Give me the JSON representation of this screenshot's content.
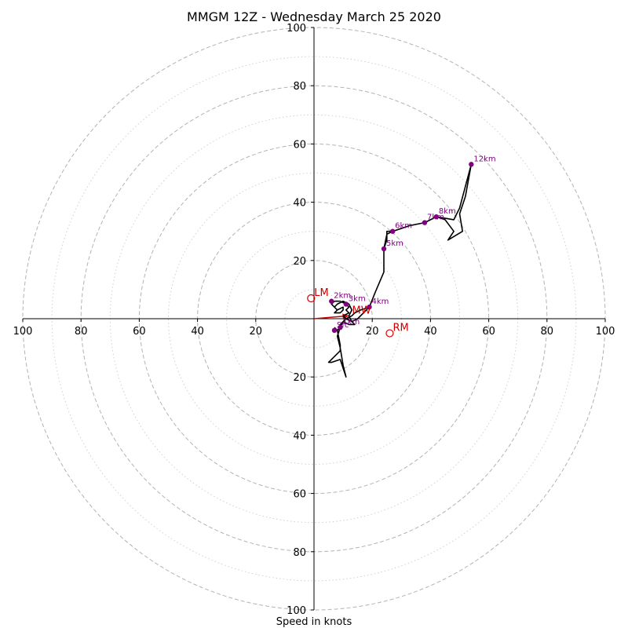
{
  "chart_data": {
    "type": "hodograph",
    "title": "MMGM 12Z - Wednesday March 25 2020",
    "xlabel": "Speed in knots",
    "range": [
      -100,
      100
    ],
    "rings_major": [
      20,
      40,
      60,
      80,
      100
    ],
    "rings_minor": [
      10,
      30,
      50,
      70,
      90
    ],
    "tick_labels_x": [
      "100",
      "80",
      "60",
      "40",
      "20",
      "20",
      "40",
      "60",
      "80",
      "100"
    ],
    "tick_values_x": [
      -100,
      -80,
      -60,
      -40,
      -20,
      20,
      40,
      60,
      80,
      100
    ],
    "tick_labels_y": [
      "100",
      "80",
      "60",
      "40",
      "20",
      "20",
      "40",
      "60",
      "80",
      "100"
    ],
    "tick_values_y": [
      100,
      80,
      60,
      40,
      20,
      -20,
      -40,
      -60,
      -80,
      -100
    ],
    "colors": {
      "trace": "#000000",
      "points": "#800080",
      "motion": "#cc0000",
      "ring": "#b3b3b3"
    },
    "trace": [
      [
        7,
        -3
      ],
      [
        8,
        -4
      ],
      [
        9,
        -9
      ],
      [
        9,
        -11
      ],
      [
        5,
        -15
      ],
      [
        6,
        -15
      ],
      [
        9,
        -14
      ],
      [
        11,
        -20
      ],
      [
        10,
        -16
      ],
      [
        9,
        -10
      ],
      [
        8,
        -6
      ],
      [
        9,
        -3
      ],
      [
        10,
        -1
      ],
      [
        11,
        0
      ],
      [
        13,
        1
      ],
      [
        14,
        2
      ],
      [
        16,
        3
      ],
      [
        19,
        4
      ],
      [
        21,
        9
      ],
      [
        24,
        16
      ],
      [
        24,
        24
      ],
      [
        25,
        27
      ],
      [
        25,
        30
      ],
      [
        27,
        30
      ],
      [
        33,
        32
      ],
      [
        38,
        33
      ],
      [
        40,
        34
      ],
      [
        42,
        35
      ],
      [
        45,
        34
      ],
      [
        48,
        30
      ],
      [
        46,
        27
      ],
      [
        51,
        30
      ],
      [
        50,
        36
      ],
      [
        52,
        42
      ],
      [
        54,
        53
      ],
      [
        50,
        38
      ],
      [
        48,
        34
      ],
      [
        42,
        35
      ],
      [
        38,
        33
      ],
      [
        33,
        32
      ],
      [
        27,
        30
      ],
      [
        25,
        29
      ],
      [
        24,
        24
      ],
      [
        24,
        16
      ],
      [
        21,
        9
      ],
      [
        19,
        4
      ],
      [
        17,
        2
      ],
      [
        15,
        0
      ],
      [
        13,
        -1
      ],
      [
        14,
        -2
      ],
      [
        13,
        -1
      ],
      [
        12,
        1
      ],
      [
        13,
        3
      ],
      [
        12,
        5
      ],
      [
        10,
        6
      ],
      [
        8,
        5
      ],
      [
        7,
        4
      ],
      [
        8,
        3
      ],
      [
        7,
        2
      ],
      [
        9,
        2
      ],
      [
        10,
        3
      ],
      [
        10,
        4
      ],
      [
        8,
        3
      ],
      [
        7,
        4
      ],
      [
        6,
        5
      ],
      [
        7,
        6
      ],
      [
        9,
        6
      ],
      [
        11,
        5
      ],
      [
        12,
        4
      ],
      [
        11,
        3
      ],
      [
        12,
        2
      ],
      [
        10,
        1
      ],
      [
        11,
        0
      ],
      [
        13,
        -1
      ],
      [
        14,
        -2
      ],
      [
        12,
        -2
      ],
      [
        10,
        -1
      ],
      [
        9,
        -2
      ],
      [
        9,
        -3
      ],
      [
        8,
        -4
      ]
    ],
    "height_points": [
      {
        "label": "Sfc",
        "x": 7,
        "y": -4
      },
      {
        "label": "1km",
        "x": 9,
        "y": -3
      },
      {
        "label": "2km",
        "x": 6,
        "y": 6
      },
      {
        "label": "3km",
        "x": 11,
        "y": 5
      },
      {
        "label": "4km",
        "x": 19,
        "y": 4
      },
      {
        "label": "5km",
        "x": 24,
        "y": 24
      },
      {
        "label": "6km",
        "x": 27,
        "y": 30
      },
      {
        "label": "7km",
        "x": 38,
        "y": 33
      },
      {
        "label": "8km",
        "x": 42,
        "y": 35
      },
      {
        "label": "12km",
        "x": 54,
        "y": 53
      }
    ],
    "storm_motion": [
      {
        "label": "LM",
        "x": -1,
        "y": 7
      },
      {
        "label": "RM",
        "x": 26,
        "y": -5
      },
      {
        "label": "MW",
        "x": 12,
        "y": 1
      }
    ],
    "mean_wind_arrow": {
      "from": [
        0,
        0
      ],
      "to": [
        12,
        1
      ]
    }
  }
}
